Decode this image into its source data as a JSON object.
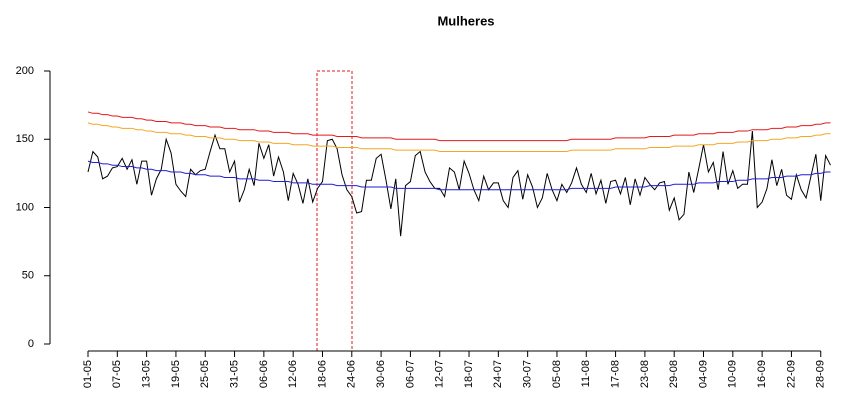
{
  "chart_data": {
    "type": "line",
    "title": "Mulheres",
    "categories": [
      "01-05",
      null,
      null,
      null,
      null,
      null,
      "07-05",
      null,
      null,
      null,
      null,
      null,
      "13-05",
      null,
      null,
      null,
      null,
      null,
      "19-05",
      null,
      null,
      null,
      null,
      null,
      "25-05",
      null,
      null,
      null,
      null,
      null,
      "31-05",
      null,
      null,
      null,
      null,
      null,
      "06-06",
      null,
      null,
      null,
      null,
      null,
      "12-06",
      null,
      null,
      null,
      null,
      null,
      "18-06",
      null,
      null,
      null,
      null,
      null,
      "24-06",
      null,
      null,
      null,
      null,
      null,
      "30-06",
      null,
      null,
      null,
      null,
      null,
      "06-07",
      null,
      null,
      null,
      null,
      null,
      "12-07",
      null,
      null,
      null,
      null,
      null,
      "18-07",
      null,
      null,
      null,
      null,
      null,
      "24-07",
      null,
      null,
      null,
      null,
      null,
      "30-07",
      null,
      null,
      null,
      null,
      null,
      "05-08",
      null,
      null,
      null,
      null,
      null,
      "11-08",
      null,
      null,
      null,
      null,
      null,
      "17-08",
      null,
      null,
      null,
      null,
      null,
      "23-08",
      null,
      null,
      null,
      null,
      null,
      "29-08",
      null,
      null,
      null,
      null,
      null,
      "04-09",
      null,
      null,
      null,
      null,
      null,
      "10-09",
      null,
      null,
      null,
      null,
      null,
      "16-09",
      null,
      null,
      null,
      null,
      null,
      "22-09",
      null,
      null,
      null,
      null,
      null,
      "28-09",
      null,
      null
    ],
    "series": [
      {
        "color": "#000000",
        "values": [
          126,
          141,
          137,
          121,
          123,
          129,
          130,
          136,
          128,
          135,
          117,
          134,
          134,
          109,
          121,
          128,
          150,
          140,
          117,
          112,
          108,
          128,
          124,
          127,
          128,
          141,
          153,
          143,
          143,
          126,
          134,
          104,
          113,
          128,
          116,
          147,
          136,
          146,
          123,
          137,
          126,
          105,
          125,
          117,
          103,
          121,
          104,
          114,
          119,
          149,
          150,
          143,
          124,
          113,
          108,
          96,
          97,
          120,
          120,
          136,
          139,
          120,
          99,
          121,
          79,
          116,
          119,
          138,
          141,
          126,
          119,
          114,
          114,
          108,
          129,
          126,
          113,
          134,
          125,
          113,
          105,
          123,
          113,
          118,
          118,
          105,
          100,
          122,
          127,
          106,
          124,
          115,
          100,
          107,
          125,
          113,
          105,
          117,
          111,
          118,
          129,
          117,
          111,
          125,
          110,
          120,
          103,
          119,
          120,
          110,
          122,
          102,
          121,
          109,
          122,
          117,
          113,
          118,
          119,
          98,
          107,
          91,
          95,
          126,
          111,
          128,
          146,
          126,
          133,
          113,
          141,
          117,
          127,
          114,
          117,
          117,
          156,
          100,
          104,
          114,
          135,
          116,
          128,
          109,
          106,
          124,
          113,
          107,
          123,
          139,
          105,
          138,
          131
        ]
      },
      {
        "color": "#e31a1c",
        "values": [
          170,
          169,
          169,
          168,
          168,
          167,
          167,
          166,
          166,
          166,
          165,
          165,
          164,
          164,
          163,
          163,
          163,
          162,
          162,
          162,
          161,
          161,
          160,
          160,
          160,
          159,
          159,
          159,
          158,
          158,
          158,
          157,
          157,
          157,
          157,
          156,
          156,
          156,
          155,
          155,
          155,
          155,
          154,
          154,
          154,
          154,
          153,
          153,
          153,
          153,
          153,
          152,
          152,
          152,
          152,
          152,
          151,
          151,
          151,
          151,
          151,
          151,
          151,
          150,
          150,
          150,
          150,
          150,
          150,
          150,
          150,
          150,
          149,
          149,
          149,
          149,
          149,
          149,
          149,
          149,
          149,
          149,
          149,
          149,
          149,
          149,
          149,
          149,
          149,
          149,
          149,
          149,
          149,
          149,
          149,
          149,
          149,
          149,
          149,
          150,
          150,
          150,
          150,
          150,
          150,
          150,
          150,
          150,
          151,
          151,
          151,
          151,
          151,
          151,
          151,
          152,
          152,
          152,
          152,
          152,
          153,
          153,
          153,
          153,
          153,
          154,
          154,
          154,
          154,
          155,
          155,
          155,
          155,
          156,
          156,
          156,
          157,
          157,
          157,
          157,
          158,
          158,
          158,
          159,
          159,
          159,
          160,
          160,
          160,
          161,
          161,
          162,
          162
        ]
      },
      {
        "color": "#f5a623",
        "values": [
          162,
          161,
          161,
          160,
          160,
          159,
          159,
          158,
          158,
          158,
          157,
          157,
          156,
          156,
          155,
          155,
          155,
          154,
          154,
          154,
          153,
          153,
          152,
          152,
          152,
          151,
          151,
          151,
          150,
          150,
          150,
          149,
          149,
          149,
          149,
          148,
          148,
          148,
          147,
          147,
          147,
          147,
          146,
          146,
          146,
          146,
          145,
          145,
          145,
          145,
          145,
          144,
          144,
          144,
          144,
          144,
          143,
          143,
          143,
          143,
          143,
          143,
          143,
          142,
          142,
          142,
          142,
          142,
          142,
          142,
          142,
          142,
          141,
          141,
          141,
          141,
          141,
          141,
          141,
          141,
          141,
          141,
          141,
          141,
          141,
          141,
          141,
          141,
          141,
          141,
          141,
          141,
          141,
          141,
          141,
          141,
          141,
          141,
          141,
          142,
          142,
          142,
          142,
          142,
          142,
          142,
          142,
          142,
          143,
          143,
          143,
          143,
          143,
          143,
          143,
          144,
          144,
          144,
          144,
          144,
          145,
          145,
          145,
          145,
          145,
          146,
          146,
          146,
          146,
          147,
          147,
          147,
          147,
          148,
          148,
          148,
          149,
          149,
          149,
          149,
          150,
          150,
          150,
          151,
          151,
          151,
          152,
          152,
          152,
          153,
          153,
          154,
          154
        ]
      },
      {
        "color": "#1f1fd6",
        "values": [
          134,
          133,
          133,
          132,
          132,
          131,
          131,
          130,
          130,
          130,
          129,
          129,
          128,
          128,
          127,
          127,
          127,
          126,
          126,
          126,
          125,
          125,
          124,
          124,
          124,
          123,
          123,
          123,
          122,
          122,
          122,
          121,
          121,
          121,
          121,
          120,
          120,
          120,
          119,
          119,
          119,
          119,
          118,
          118,
          118,
          118,
          117,
          117,
          117,
          117,
          117,
          116,
          116,
          116,
          116,
          116,
          115,
          115,
          115,
          115,
          115,
          115,
          115,
          114,
          114,
          114,
          114,
          114,
          114,
          114,
          114,
          114,
          113,
          113,
          113,
          113,
          113,
          113,
          113,
          113,
          113,
          113,
          113,
          113,
          113,
          113,
          113,
          113,
          113,
          113,
          113,
          113,
          113,
          113,
          113,
          113,
          113,
          113,
          113,
          114,
          114,
          114,
          114,
          114,
          114,
          114,
          114,
          114,
          115,
          115,
          115,
          115,
          115,
          115,
          115,
          116,
          116,
          116,
          116,
          116,
          117,
          117,
          117,
          117,
          117,
          118,
          118,
          118,
          118,
          119,
          119,
          119,
          119,
          120,
          120,
          120,
          121,
          121,
          121,
          121,
          122,
          122,
          122,
          123,
          123,
          123,
          124,
          124,
          124,
          125,
          125,
          126,
          126
        ]
      }
    ],
    "ylim": [
      0,
      200
    ],
    "yticks": [
      0,
      50,
      100,
      150,
      200
    ]
  }
}
